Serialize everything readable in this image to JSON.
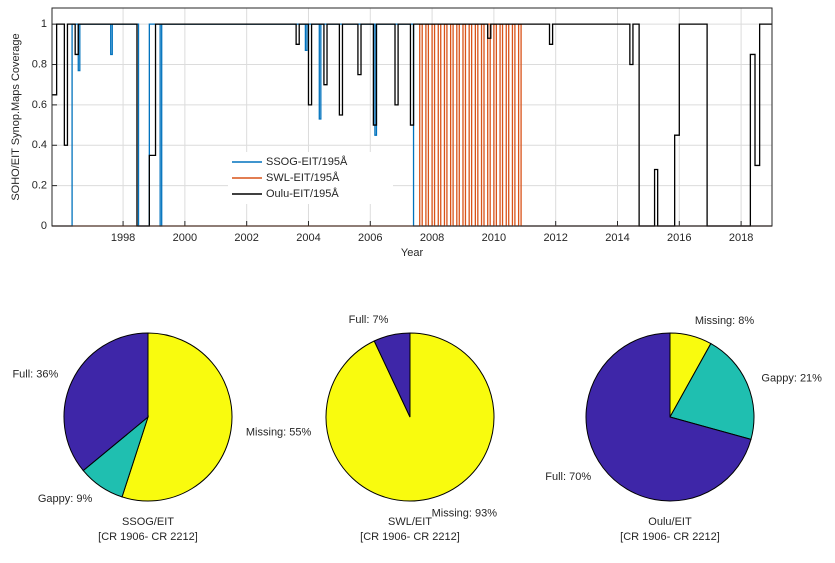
{
  "chart_data": [
    {
      "type": "line",
      "xlabel": "Year",
      "ylabel": "SOHO/EIT Synop.Maps Coverage",
      "xlim": [
        1995.7,
        2019
      ],
      "ylim": [
        0,
        1.08
      ],
      "xticks": [
        1998,
        2000,
        2002,
        2004,
        2006,
        2008,
        2010,
        2012,
        2014,
        2016,
        2018
      ],
      "yticks": [
        0,
        0.2,
        0.4,
        0.6,
        0.8,
        1
      ],
      "grid": true,
      "legend": "center",
      "series": [
        {
          "name": "SSOG-EIT/195Å",
          "color": "#0072bd",
          "x": [
            1995.7,
            1996.35,
            1996.35,
            1996.55,
            1996.55,
            1996.6,
            1996.6,
            1997.6,
            1997.6,
            1997.65,
            1997.65,
            1998.5,
            1998.5,
            1998.85,
            1998.85,
            1999.2,
            1999.2,
            1999.25,
            1999.25,
            2003.9,
            2003.9,
            2003.95,
            2003.95,
            2004.35,
            2004.35,
            2004.4,
            2004.4,
            2006.15,
            2006.15,
            2006.2,
            2006.2,
            2007.4,
            2007.4,
            2019
          ],
          "values": [
            0,
            0,
            1,
            1,
            0.77,
            0.77,
            1,
            1,
            0.85,
            0.85,
            1,
            1,
            0,
            0,
            1,
            1,
            0,
            0,
            1,
            1,
            0.87,
            0.87,
            1,
            1,
            0.53,
            0.53,
            1,
            1,
            0.45,
            0.45,
            1,
            1,
            0,
            0
          ]
        },
        {
          "name": "SWL-EIT/195Å",
          "color": "#d95319",
          "x": [
            1995.7,
            2007.6,
            2007.6,
            2007.68,
            2007.68,
            2007.8,
            2007.8,
            2007.88,
            2007.88,
            2008.0,
            2008.0,
            2008.08,
            2008.08,
            2008.2,
            2008.2,
            2008.28,
            2008.28,
            2008.4,
            2008.4,
            2008.48,
            2008.48,
            2008.6,
            2008.6,
            2008.68,
            2008.68,
            2008.8,
            2008.8,
            2008.88,
            2008.88,
            2009.0,
            2009.0,
            2009.08,
            2009.08,
            2009.2,
            2009.2,
            2009.28,
            2009.28,
            2009.4,
            2009.4,
            2009.48,
            2009.48,
            2009.6,
            2009.6,
            2009.68,
            2009.68,
            2009.8,
            2009.8,
            2009.88,
            2009.88,
            2010.0,
            2010.0,
            2010.08,
            2010.08,
            2010.2,
            2010.2,
            2010.28,
            2010.28,
            2010.4,
            2010.4,
            2010.48,
            2010.48,
            2010.6,
            2010.6,
            2010.68,
            2010.68,
            2010.8,
            2010.8,
            2010.88,
            2010.88,
            2019
          ],
          "values": [
            0,
            0,
            1,
            1,
            0,
            0,
            1,
            1,
            0,
            0,
            1,
            1,
            0,
            0,
            1,
            1,
            0,
            0,
            1,
            1,
            0,
            0,
            1,
            1,
            0,
            0,
            1,
            1,
            0,
            0,
            1,
            1,
            0,
            0,
            1,
            1,
            0,
            0,
            1,
            1,
            0,
            0,
            1,
            1,
            0,
            0,
            1,
            1,
            0,
            0,
            1,
            1,
            0,
            0,
            1,
            1,
            0,
            0,
            1,
            1,
            0,
            0,
            1,
            1,
            0,
            0,
            1,
            1,
            0,
            0
          ]
        },
        {
          "name": "Oulu-EIT/195Å",
          "color": "#000000",
          "x": [
            1995.7,
            1995.85,
            1995.85,
            1996.1,
            1996.1,
            1996.2,
            1996.2,
            1996.45,
            1996.45,
            1996.55,
            1996.55,
            1998.45,
            1998.45,
            1998.85,
            1998.85,
            1999.05,
            1999.05,
            2003.6,
            2003.6,
            2003.7,
            2003.7,
            2004.0,
            2004.0,
            2004.1,
            2004.1,
            2004.5,
            2004.5,
            2004.6,
            2004.6,
            2005.0,
            2005.0,
            2005.1,
            2005.1,
            2005.6,
            2005.6,
            2005.7,
            2005.7,
            2006.1,
            2006.1,
            2006.2,
            2006.2,
            2006.8,
            2006.8,
            2006.9,
            2006.9,
            2007.3,
            2007.3,
            2007.4,
            2007.4,
            2009.8,
            2009.8,
            2009.9,
            2009.9,
            2011.8,
            2011.8,
            2011.9,
            2011.9,
            2014.4,
            2014.4,
            2014.5,
            2014.5,
            2014.7,
            2014.7,
            2015.2,
            2015.2,
            2015.3,
            2015.3,
            2015.85,
            2015.85,
            2016.0,
            2016.0,
            2016.9,
            2016.9,
            2018.3,
            2018.3,
            2018.45,
            2018.45,
            2018.6,
            2018.6,
            2019
          ],
          "values": [
            0.65,
            0.65,
            1,
            1,
            0.4,
            0.4,
            1,
            1,
            0.85,
            0.85,
            1,
            1,
            0,
            0,
            0.35,
            0.35,
            1,
            1,
            0.9,
            0.9,
            1,
            1,
            0.6,
            0.6,
            1,
            1,
            0.7,
            0.7,
            1,
            1,
            0.55,
            0.55,
            1,
            1,
            0.75,
            0.75,
            1,
            1,
            0.5,
            0.5,
            1,
            1,
            0.6,
            0.6,
            1,
            1,
            0.5,
            0.5,
            1,
            1,
            0.93,
            0.93,
            1,
            1,
            0.9,
            0.9,
            1,
            1,
            0.8,
            0.8,
            1,
            1,
            0,
            0,
            0.28,
            0.28,
            0,
            0,
            0.45,
            0.45,
            1,
            1,
            0,
            0,
            0.85,
            0.85,
            0.3,
            0.3,
            1,
            1
          ]
        }
      ]
    },
    {
      "type": "pie",
      "title": "SSOG/EIT",
      "subtitle": "[CR 1906- CR 2212]",
      "values": [
        55,
        9,
        36
      ],
      "value_labels": [
        "Missing: 55%",
        "Gappy: 9%",
        "Full: 36%"
      ],
      "colors": [
        "#f9fb0e",
        "#1fbfb0",
        "#3e26a8"
      ]
    },
    {
      "type": "pie",
      "title": "SWL/EIT",
      "subtitle": "[CR 1906- CR 2212]",
      "values": [
        93,
        7
      ],
      "value_labels": [
        "Missing: 93%",
        "Full: 7%"
      ],
      "colors": [
        "#f9fb0e",
        "#3e26a8"
      ]
    },
    {
      "type": "pie",
      "title": "Oulu/EIT",
      "subtitle": "[CR 1906- CR 2212]",
      "values": [
        8,
        21,
        70
      ],
      "value_labels": [
        "Missing: 8%",
        "Gappy: 21%",
        "Full: 70%"
      ],
      "colors": [
        "#f9fb0e",
        "#1fbfb0",
        "#3e26a8"
      ]
    }
  ]
}
